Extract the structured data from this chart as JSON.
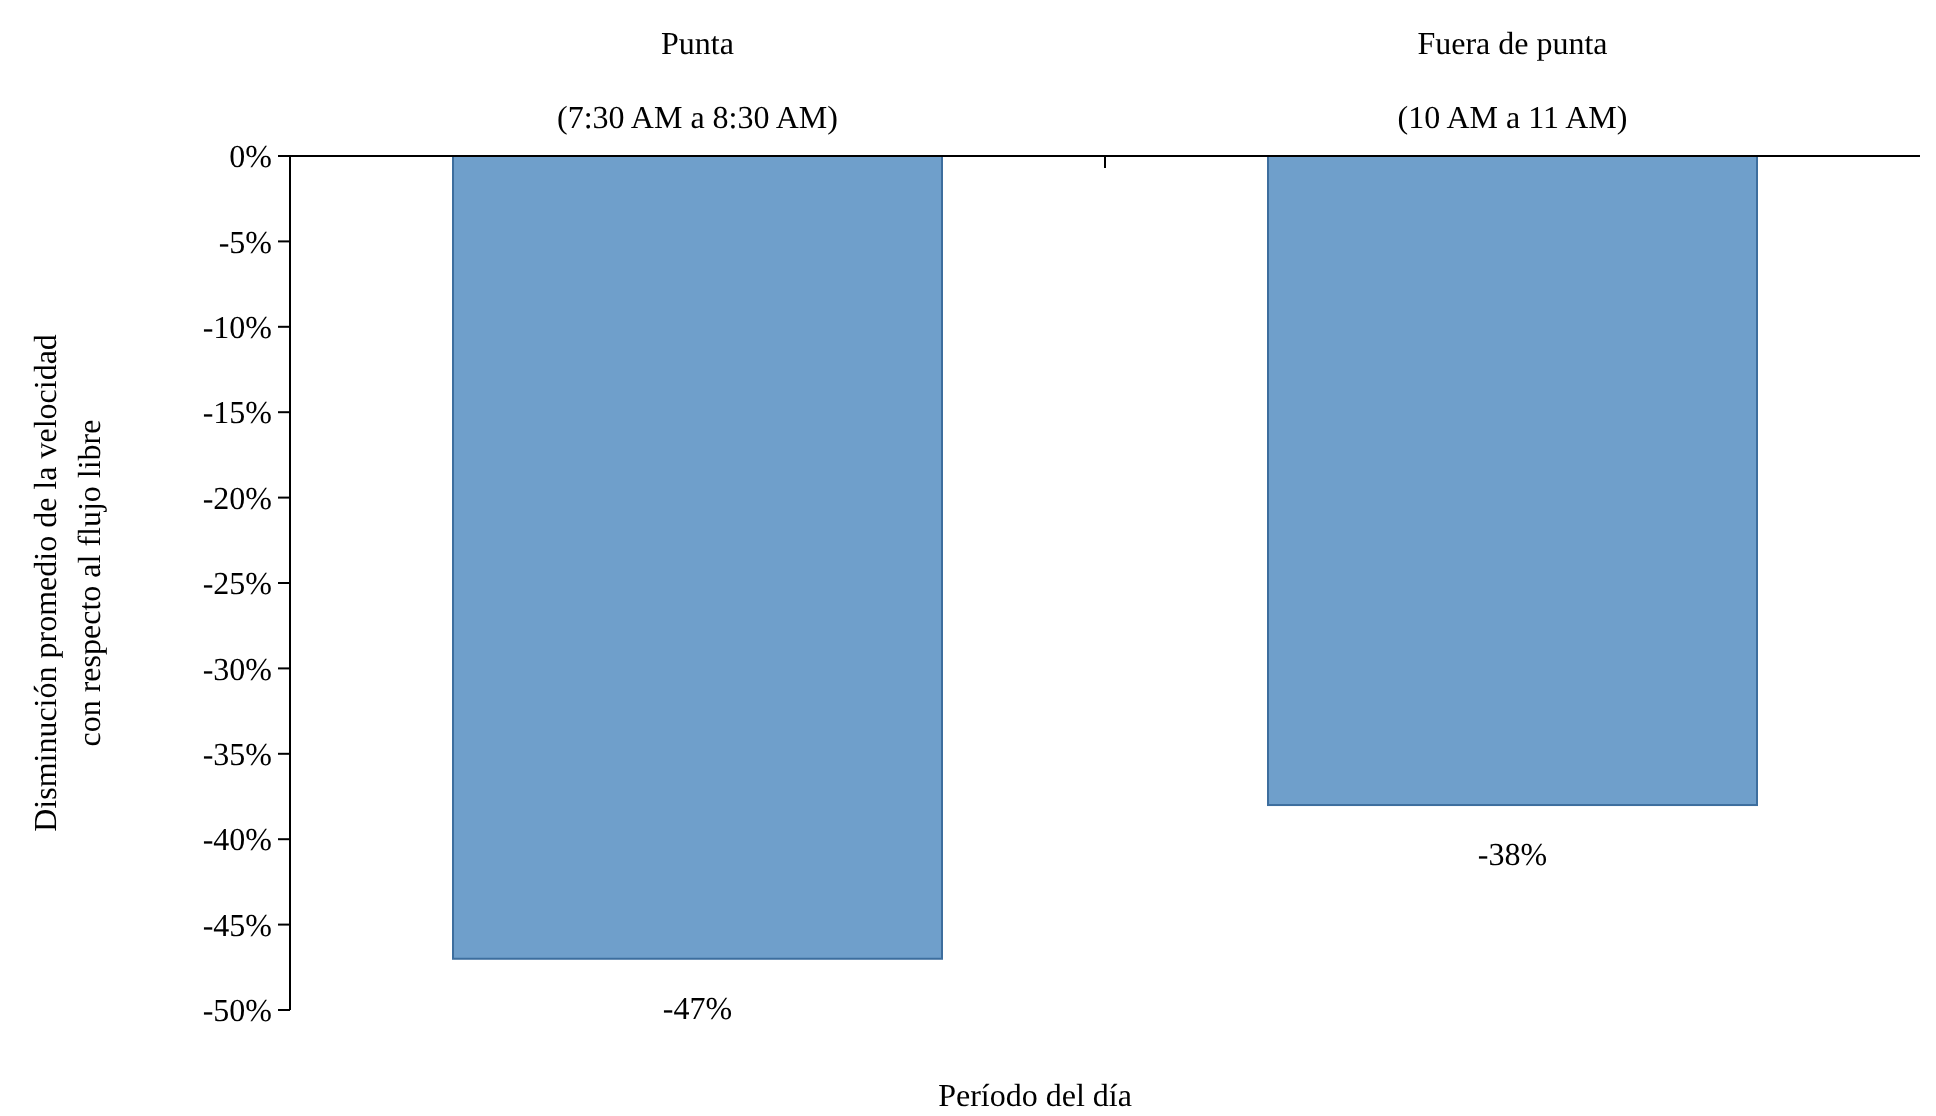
{
  "chart_data": {
    "type": "bar",
    "xlabel": "Período del día",
    "ylabel": "Disminución promedio de la velocidad\ncon respecto al flujo libre",
    "categories": [
      "Punta\n(7:30 AM a 8:30 AM)",
      "Fuera de punta\n(10 AM a 11 AM)"
    ],
    "values": [
      -47,
      -38
    ],
    "value_labels": [
      "-47%",
      "-38%"
    ],
    "color": "#6f9fcb",
    "ylim": [
      -50,
      0
    ],
    "yticks": [
      {
        "value": 0,
        "label": "0%"
      },
      {
        "value": -5,
        "label": "-5%"
      },
      {
        "value": -10,
        "label": "-10%"
      },
      {
        "value": -15,
        "label": "-15%"
      },
      {
        "value": -20,
        "label": "-20%"
      },
      {
        "value": -25,
        "label": "-25%"
      },
      {
        "value": -30,
        "label": "-30%"
      },
      {
        "value": -35,
        "label": "-35%"
      },
      {
        "value": -40,
        "label": "-40%"
      },
      {
        "value": -45,
        "label": "-45%"
      },
      {
        "value": -50,
        "label": "-50%"
      }
    ],
    "grid": false
  }
}
